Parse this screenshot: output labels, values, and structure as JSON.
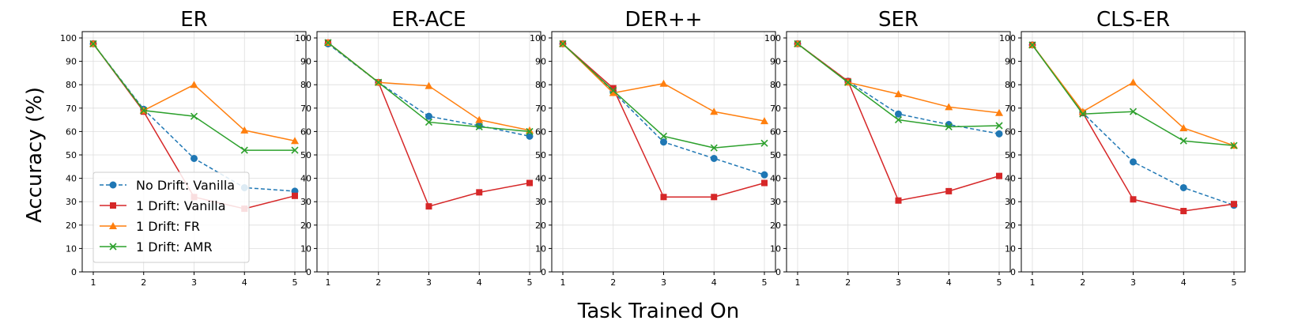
{
  "figure": {
    "ylabel": "Accuracy (%)",
    "xlabel": "Task Trained On"
  },
  "styles": {
    "No Drift: Vanilla": {
      "color": "#1f77b4",
      "marker": "circle",
      "dash": true
    },
    "1 Drift: Vanilla": {
      "color": "#d62728",
      "marker": "square",
      "dash": false
    },
    "1 Drift: FR": {
      "color": "#ff7f0e",
      "marker": "triangle",
      "dash": false
    },
    "1 Drift: AMR": {
      "color": "#2ca02c",
      "marker": "x",
      "dash": false
    }
  },
  "legend": {
    "location": "lower-left of first panel",
    "entries": [
      "No Drift: Vanilla",
      "1 Drift: Vanilla",
      "1 Drift: FR",
      "1 Drift: AMR"
    ]
  },
  "chart_data": [
    {
      "type": "line",
      "title": "ER",
      "x": [
        1,
        2,
        3,
        4,
        5
      ],
      "ylim": [
        0,
        100
      ],
      "yticks": [
        0,
        10,
        20,
        30,
        40,
        50,
        60,
        70,
        80,
        90,
        100
      ],
      "grid": true,
      "series": [
        {
          "name": "No Drift: Vanilla",
          "values": [
            97.5,
            69.5,
            48.5,
            36.0,
            34.5
          ]
        },
        {
          "name": "1 Drift: Vanilla",
          "values": [
            97.5,
            68.5,
            32.0,
            27.0,
            32.5
          ]
        },
        {
          "name": "1 Drift: FR",
          "values": [
            97.5,
            69.0,
            80.0,
            60.5,
            56.0
          ]
        },
        {
          "name": "1 Drift: AMR",
          "values": [
            97.5,
            69.0,
            66.5,
            52.0,
            52.0
          ]
        }
      ]
    },
    {
      "type": "line",
      "title": "ER-ACE",
      "x": [
        1,
        2,
        3,
        4,
        5
      ],
      "ylim": [
        0,
        100
      ],
      "yticks": [
        0,
        10,
        20,
        30,
        40,
        50,
        60,
        70,
        80,
        90,
        100
      ],
      "grid": true,
      "series": [
        {
          "name": "No Drift: Vanilla",
          "values": [
            97.5,
            81.0,
            66.5,
            62.5,
            58.0
          ]
        },
        {
          "name": "1 Drift: Vanilla",
          "values": [
            98.0,
            81.0,
            28.0,
            34.0,
            38.0
          ]
        },
        {
          "name": "1 Drift: FR",
          "values": [
            98.0,
            81.0,
            79.5,
            65.0,
            60.5
          ]
        },
        {
          "name": "1 Drift: AMR",
          "values": [
            98.0,
            81.0,
            64.0,
            62.0,
            60.0
          ]
        }
      ]
    },
    {
      "type": "line",
      "title": "DER++",
      "x": [
        1,
        2,
        3,
        4,
        5
      ],
      "ylim": [
        0,
        100
      ],
      "yticks": [
        0,
        10,
        20,
        30,
        40,
        50,
        60,
        70,
        80,
        90,
        100
      ],
      "grid": true,
      "series": [
        {
          "name": "No Drift: Vanilla",
          "values": [
            97.5,
            77.0,
            55.5,
            48.5,
            41.5
          ]
        },
        {
          "name": "1 Drift: Vanilla",
          "values": [
            97.5,
            78.5,
            32.0,
            32.0,
            38.0
          ]
        },
        {
          "name": "1 Drift: FR",
          "values": [
            97.5,
            76.5,
            80.5,
            68.5,
            64.5
          ]
        },
        {
          "name": "1 Drift: AMR",
          "values": [
            97.5,
            77.5,
            58.0,
            53.0,
            55.0
          ]
        }
      ]
    },
    {
      "type": "line",
      "title": "SER",
      "x": [
        1,
        2,
        3,
        4,
        5
      ],
      "ylim": [
        0,
        100
      ],
      "yticks": [
        0,
        10,
        20,
        30,
        40,
        50,
        60,
        70,
        80,
        90,
        100
      ],
      "grid": true,
      "series": [
        {
          "name": "No Drift: Vanilla",
          "values": [
            97.5,
            81.5,
            67.5,
            63.0,
            59.0
          ]
        },
        {
          "name": "1 Drift: Vanilla",
          "values": [
            97.5,
            81.5,
            30.5,
            34.5,
            41.0
          ]
        },
        {
          "name": "1 Drift: FR",
          "values": [
            97.5,
            81.0,
            76.0,
            70.5,
            68.0
          ]
        },
        {
          "name": "1 Drift: AMR",
          "values": [
            97.5,
            81.0,
            65.0,
            62.0,
            62.5
          ]
        }
      ]
    },
    {
      "type": "line",
      "title": "CLS-ER",
      "x": [
        1,
        2,
        3,
        4,
        5
      ],
      "ylim": [
        0,
        100
      ],
      "yticks": [
        0,
        10,
        20,
        30,
        40,
        50,
        60,
        70,
        80,
        90,
        100
      ],
      "grid": true,
      "series": [
        {
          "name": "No Drift: Vanilla",
          "values": [
            97.0,
            68.0,
            47.0,
            36.0,
            28.5
          ]
        },
        {
          "name": "1 Drift: Vanilla",
          "values": [
            97.0,
            68.0,
            31.0,
            26.0,
            29.0
          ]
        },
        {
          "name": "1 Drift: FR",
          "values": [
            97.0,
            68.5,
            81.0,
            61.5,
            54.0
          ]
        },
        {
          "name": "1 Drift: AMR",
          "values": [
            97.0,
            67.5,
            68.5,
            56.0,
            54.0
          ]
        }
      ]
    }
  ]
}
